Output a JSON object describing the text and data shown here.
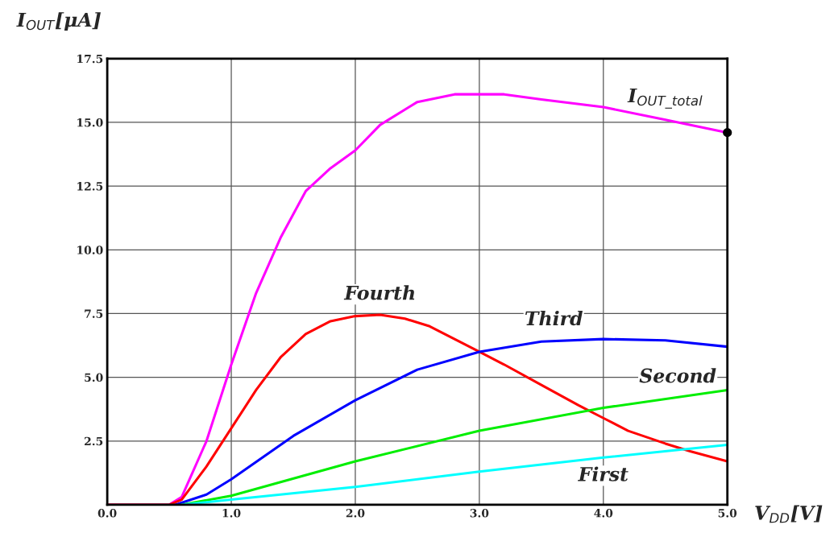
{
  "chart_data": {
    "type": "line",
    "xlabel": "V$_{DD}$[V]",
    "ylabel": "I$_{OUT}$[μA]",
    "xlim": [
      0,
      5
    ],
    "ylim": [
      0,
      17.5
    ],
    "xticks": [
      {
        "value": 0,
        "label": "0.0"
      },
      {
        "value": 1,
        "label": "1.0"
      },
      {
        "value": 2,
        "label": "2.0"
      },
      {
        "value": 3,
        "label": "3.0"
      },
      {
        "value": 4,
        "label": "4.0"
      },
      {
        "value": 5,
        "label": "5.0"
      }
    ],
    "yticks": [
      {
        "value": 2.5,
        "label": "2.5"
      },
      {
        "value": 5,
        "label": "5.0"
      },
      {
        "value": 7.5,
        "label": "7.5"
      },
      {
        "value": 10,
        "label": "10.0"
      },
      {
        "value": 12.5,
        "label": "12.5"
      },
      {
        "value": 15,
        "label": "15.0"
      },
      {
        "value": 17.5,
        "label": "17.5"
      }
    ],
    "grid": true,
    "line_style": "solid",
    "marker": "none",
    "series": [
      {
        "color": "#ff00ff",
        "x": [
          0,
          0.5,
          0.6,
          0.8,
          1.0,
          1.2,
          1.4,
          1.6,
          1.8,
          2.0,
          2.2,
          2.5,
          2.8,
          3.0,
          3.2,
          3.5,
          4.0,
          4.5,
          5.0
        ],
        "values": [
          0,
          0,
          0.3,
          2.5,
          5.5,
          8.3,
          10.5,
          12.3,
          13.2,
          13.9,
          14.9,
          15.8,
          16.1,
          16.1,
          16.1,
          15.9,
          15.6,
          15.1,
          14.6
        ]
      },
      {
        "color": "#ff0000",
        "x": [
          0,
          0.5,
          0.6,
          0.8,
          1.0,
          1.2,
          1.4,
          1.6,
          1.8,
          2.0,
          2.2,
          2.4,
          2.6,
          2.8,
          3.0,
          3.2,
          3.5,
          3.8,
          4.0,
          4.2,
          4.5,
          4.7,
          5.0
        ],
        "values": [
          0,
          0,
          0.2,
          1.5,
          3.0,
          4.5,
          5.8,
          6.7,
          7.2,
          7.4,
          7.45,
          7.3,
          7.0,
          6.5,
          6.0,
          5.5,
          4.7,
          3.9,
          3.4,
          2.9,
          2.4,
          2.1,
          1.7
        ]
      },
      {
        "color": "#0000ff",
        "x": [
          0.55,
          0.8,
          1.0,
          1.5,
          2.0,
          2.5,
          3.0,
          3.5,
          4.0,
          4.5,
          5.0
        ],
        "values": [
          0,
          0.4,
          1.0,
          2.7,
          4.1,
          5.3,
          6.0,
          6.4,
          6.5,
          6.45,
          6.2
        ]
      },
      {
        "color": "#00ee00",
        "x": [
          0.6,
          1.0,
          2.0,
          3.0,
          4.0,
          5.0
        ],
        "values": [
          0,
          0.35,
          1.7,
          2.9,
          3.8,
          4.5
        ]
      },
      {
        "color": "#00ffff",
        "x": [
          0.6,
          1.0,
          2.0,
          3.0,
          4.0,
          5.0
        ],
        "values": [
          0,
          0.2,
          0.7,
          1.3,
          1.85,
          2.35
        ]
      },
      {
        "type": "scatter",
        "marker": "circle",
        "color": "#000000",
        "x": [
          5.0
        ],
        "values": [
          14.6
        ]
      }
    ],
    "annotations": [
      {
        "text": "I$_{OUT_total}$",
        "x": 4.5,
        "y": 15.1
      },
      {
        "text": "Fourth",
        "x": 2.2,
        "y": 7.45
      },
      {
        "text": "Third",
        "x": 3.6,
        "y": 6.45
      },
      {
        "text": "Second",
        "x": 4.6,
        "y": 4.2
      },
      {
        "text": "First",
        "x": 4.0,
        "y": 1.85
      }
    ]
  }
}
